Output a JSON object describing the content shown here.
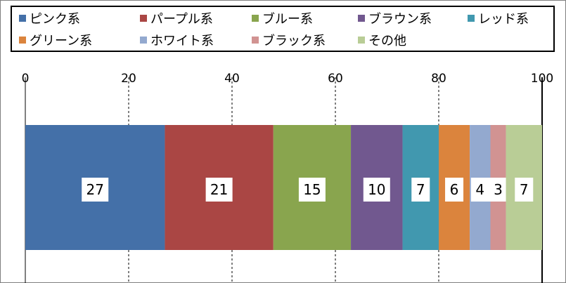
{
  "chart_data": {
    "type": "bar",
    "orientation": "horizontal-stacked-100",
    "title": "",
    "xlabel": "",
    "ylabel": "",
    "xlim": [
      0,
      100
    ],
    "xticks": [
      "0",
      "20",
      "40",
      "60",
      "80",
      "100"
    ],
    "grid": "vertical-dashed",
    "legend_position": "top",
    "series": [
      {
        "name": "ピンク系",
        "value": 27,
        "label": "27",
        "color": "#4470a8"
      },
      {
        "name": "パープル系",
        "value": 21,
        "label": "21",
        "color": "#aa4644"
      },
      {
        "name": "ブルー系",
        "value": 15,
        "label": "15",
        "color": "#89a54e"
      },
      {
        "name": "ブラウン系",
        "value": 10,
        "label": "10",
        "color": "#71588f"
      },
      {
        "name": "レッド系",
        "value": 7,
        "label": "7",
        "color": "#4198af"
      },
      {
        "name": "グリーン系",
        "value": 6,
        "label": "6",
        "color": "#db843d"
      },
      {
        "name": "ホワイト系",
        "value": 4,
        "label": "4",
        "color": "#93a9cf"
      },
      {
        "name": "ブラック系",
        "value": 3,
        "label": "3",
        "color": "#d19392"
      },
      {
        "name": "その他",
        "value": 7,
        "label": "7",
        "color": "#b9cd96"
      }
    ]
  }
}
